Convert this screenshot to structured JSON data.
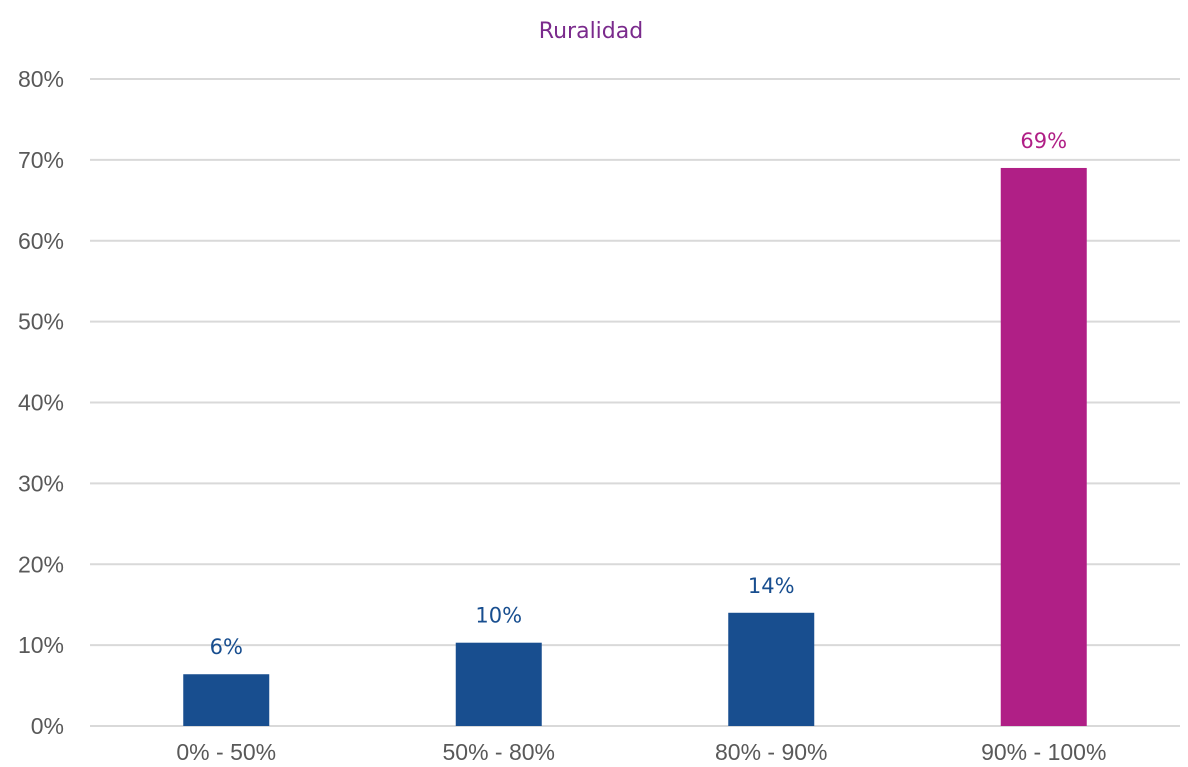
{
  "chart_data": {
    "type": "bar",
    "title": "Ruralidad",
    "xlabel": "",
    "ylabel": "",
    "categories": [
      "0% - 50%",
      "50% - 80%",
      "80% - 90%",
      "90% - 100%"
    ],
    "values": [
      6.4,
      10.3,
      14.0,
      69.0
    ],
    "data_labels": [
      "6%",
      "10%",
      "14%",
      "69%"
    ],
    "bar_colors": [
      "#184e8f",
      "#184e8f",
      "#184e8f",
      "#b01f86"
    ],
    "ylim": [
      0,
      80
    ],
    "yticks": [
      0,
      10,
      20,
      30,
      40,
      50,
      60,
      70,
      80
    ],
    "ytick_labels": [
      "0%",
      "10%",
      "20%",
      "30%",
      "40%",
      "50%",
      "60%",
      "70%",
      "80%"
    ],
    "grid": true,
    "legend": "none"
  },
  "colors": {
    "title": "#7a2a8c",
    "axis_text": "#595959",
    "gridline": "#d9d9d9"
  }
}
